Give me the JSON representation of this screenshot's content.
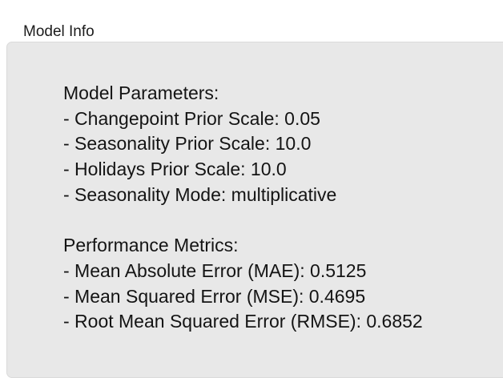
{
  "group_title": "Model Info",
  "parameters": {
    "heading": "Model Parameters:",
    "items": [
      "- Changepoint Prior Scale: 0.05",
      "- Seasonality Prior Scale: 10.0",
      "- Holidays Prior Scale: 10.0",
      "- Seasonality Mode: multiplicative"
    ]
  },
  "metrics": {
    "heading": "Performance Metrics:",
    "items": [
      "- Mean Absolute Error (MAE): 0.5125",
      "- Mean Squared Error (MSE): 0.4695",
      "- Root Mean Squared Error (RMSE): 0.6852"
    ]
  }
}
